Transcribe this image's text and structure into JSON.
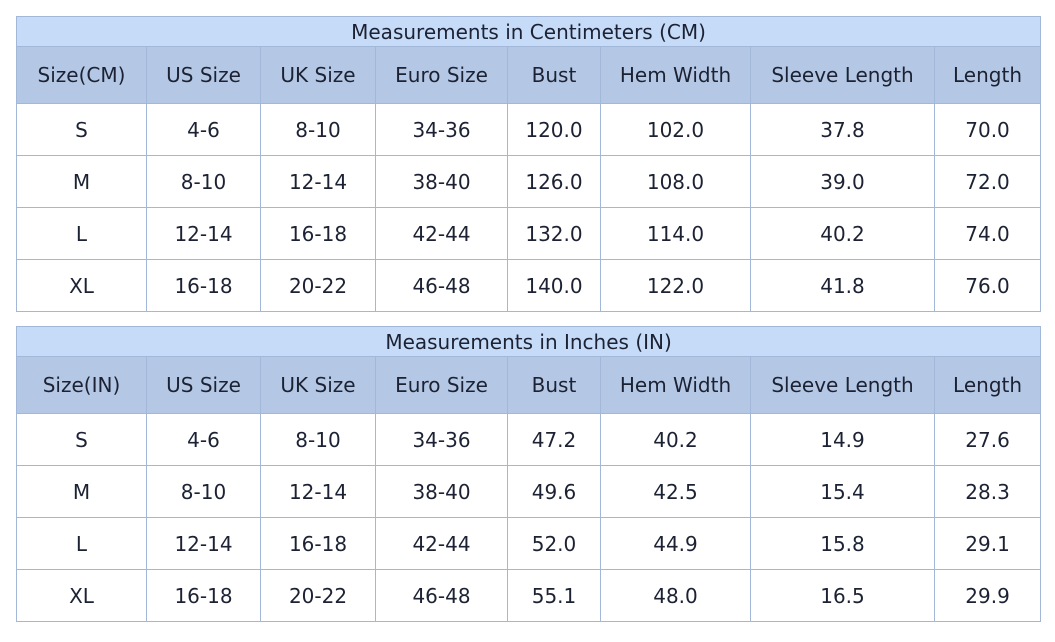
{
  "headers_cm": [
    "Size(CM)",
    "US Size",
    "UK Size",
    "Euro Size",
    "Bust",
    "Hem Width",
    "Sleeve Length",
    "Length"
  ],
  "headers_in": [
    "Size(IN)",
    "US Size",
    "UK Size",
    "Euro Size",
    "Bust",
    "Hem Width",
    "Sleeve Length",
    "Length"
  ],
  "cm": {
    "title": "Measurements in Centimeters (CM)",
    "rows": [
      [
        "S",
        "4-6",
        "8-10",
        "34-36",
        "120.0",
        "102.0",
        "37.8",
        "70.0"
      ],
      [
        "M",
        "8-10",
        "12-14",
        "38-40",
        "126.0",
        "108.0",
        "39.0",
        "72.0"
      ],
      [
        "L",
        "12-14",
        "16-18",
        "42-44",
        "132.0",
        "114.0",
        "40.2",
        "74.0"
      ],
      [
        "XL",
        "16-18",
        "20-22",
        "46-48",
        "140.0",
        "122.0",
        "41.8",
        "76.0"
      ]
    ]
  },
  "in": {
    "title": "Measurements in Inches (IN)",
    "rows": [
      [
        "S",
        "4-6",
        "8-10",
        "34-36",
        "47.2",
        "40.2",
        "14.9",
        "27.6"
      ],
      [
        "M",
        "8-10",
        "12-14",
        "38-40",
        "49.6",
        "42.5",
        "15.4",
        "28.3"
      ],
      [
        "L",
        "12-14",
        "16-18",
        "42-44",
        "52.0",
        "44.9",
        "15.8",
        "29.1"
      ],
      [
        "XL",
        "16-18",
        "20-22",
        "46-48",
        "55.1",
        "48.0",
        "16.5",
        "29.9"
      ]
    ]
  },
  "colors": {
    "title_bg": "#c6dbf7",
    "header_bg": "#b4c8e5",
    "border": "#a3b8d8"
  }
}
